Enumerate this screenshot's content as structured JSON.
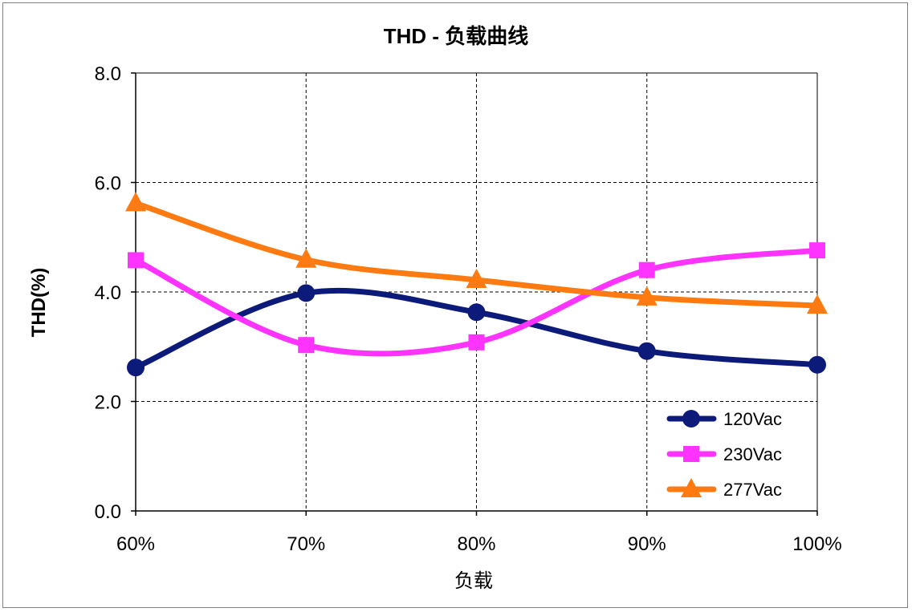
{
  "chart_data": {
    "type": "line",
    "title": "THD - 负载曲线",
    "xlabel": "负载",
    "ylabel": "THD(%)",
    "categories": [
      "60%",
      "70%",
      "80%",
      "90%",
      "100%"
    ],
    "ylim": [
      0,
      8
    ],
    "yticks": [
      "0.0",
      "2.0",
      "4.0",
      "6.0",
      "8.0"
    ],
    "yticks_values": [
      0,
      2,
      4,
      6,
      8
    ],
    "grid": "dashed",
    "legend_position": "bottom-right",
    "series": [
      {
        "name": "120Vac",
        "values": [
          2.62,
          3.98,
          3.63,
          2.92,
          2.67
        ],
        "color": "#0c1a7a",
        "marker": "circle"
      },
      {
        "name": "230Vac",
        "values": [
          4.58,
          3.03,
          3.08,
          4.4,
          4.76
        ],
        "color": "#ff33ff",
        "marker": "square"
      },
      {
        "name": "277Vac",
        "values": [
          5.62,
          4.59,
          4.22,
          3.9,
          3.75
        ],
        "color": "#ff7a10",
        "marker": "triangle"
      }
    ]
  }
}
